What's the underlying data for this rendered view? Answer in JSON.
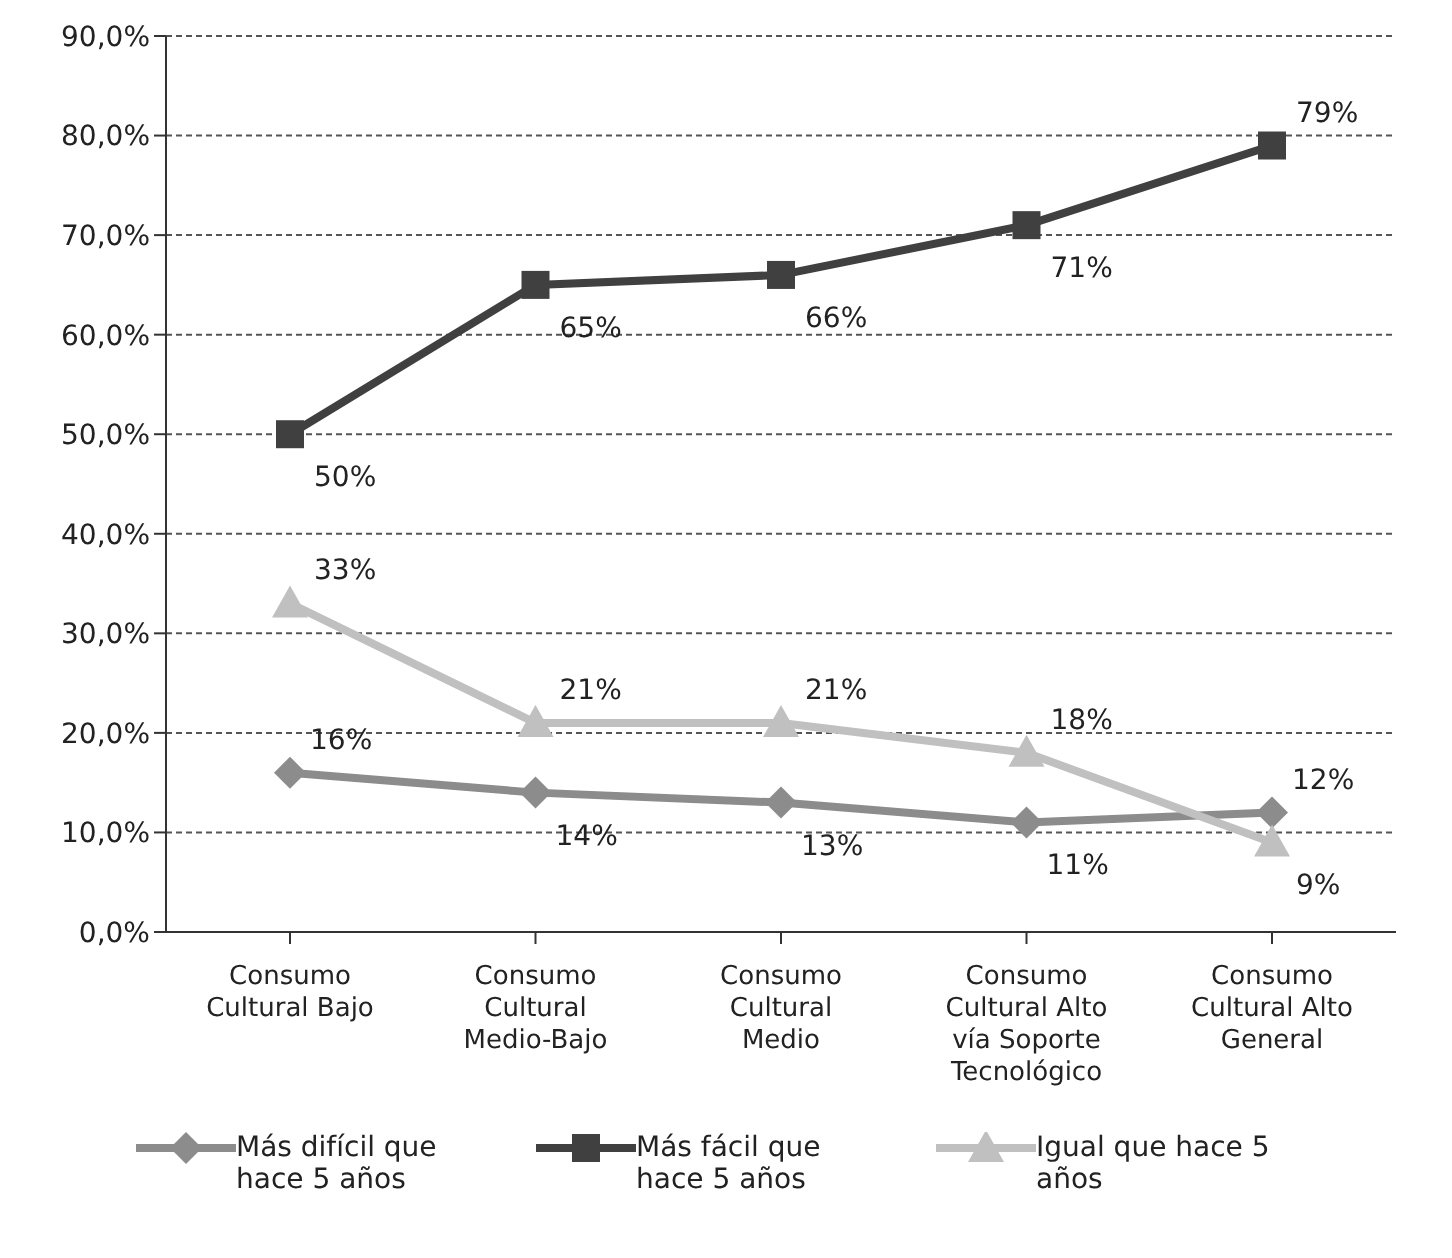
{
  "chart_data": {
    "type": "line",
    "categories": [
      "Consumo Cultural Bajo",
      "Consumo Cultural Medio-Bajo",
      "Consumo Cultural Medio",
      "Consumo Cultural Alto vía Soporte Tecnológico",
      "Consumo Cultural Alto General"
    ],
    "series": [
      {
        "name": "Más difícil que hace 5 años",
        "color": "#8c8c8c",
        "marker": "diamond",
        "values": [
          16,
          14,
          13,
          11,
          12
        ],
        "value_labels": [
          "16%",
          "14%",
          "13%",
          "11%",
          "12%"
        ]
      },
      {
        "name": "Más fácil que hace 5 años",
        "color": "#404040",
        "marker": "square",
        "values": [
          50,
          65,
          66,
          71,
          79
        ],
        "value_labels": [
          "50%",
          "65%",
          "66%",
          "71%",
          "79%"
        ]
      },
      {
        "name": "Igual que hace 5 años",
        "color": "#c0c0c0",
        "marker": "triangle",
        "values": [
          33,
          21,
          21,
          18,
          9
        ],
        "value_labels": [
          "33%",
          "21%",
          "21%",
          "18%",
          "9%"
        ]
      }
    ],
    "ylim": [
      0,
      90
    ],
    "yticks": [
      {
        "value": 0,
        "label": "0,0%"
      },
      {
        "value": 10,
        "label": "10,0%"
      },
      {
        "value": 20,
        "label": "20,0%"
      },
      {
        "value": 30,
        "label": "30,0%"
      },
      {
        "value": 40,
        "label": "40,0%"
      },
      {
        "value": 50,
        "label": "50,0%"
      },
      {
        "value": 60,
        "label": "60,0%"
      },
      {
        "value": 70,
        "label": "70,0%"
      },
      {
        "value": 80,
        "label": "80,0%"
      },
      {
        "value": 90,
        "label": "90,0%"
      }
    ],
    "grid": "y",
    "legend": "bottom",
    "line_style": "solid"
  }
}
